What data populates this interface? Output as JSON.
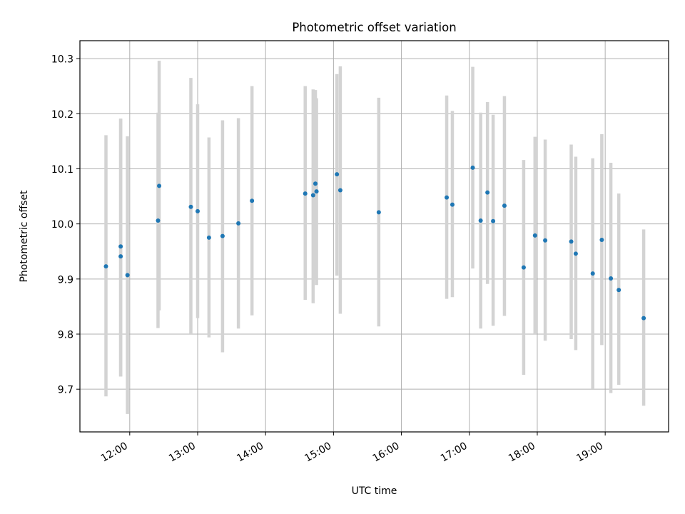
{
  "chart_data": {
    "type": "scatter",
    "title": "Photometric offset variation",
    "xlabel": "UTC time",
    "ylabel": "Photometric offset",
    "xlim": [
      "11:16",
      "19:56"
    ],
    "ylim": [
      9.6225,
      10.3325
    ],
    "grid": true,
    "xticks": [
      "12:00",
      "13:00",
      "14:00",
      "15:00",
      "16:00",
      "17:00",
      "18:00",
      "19:00"
    ],
    "yticks": [
      9.7,
      9.8,
      9.9,
      10.0,
      10.1,
      10.2,
      10.3
    ],
    "colors": {
      "point": "#1f77b4",
      "errorbar": "#d3d3d3",
      "grid": "#b0b0b0"
    },
    "series": [
      {
        "points": [
          {
            "x": "11:39",
            "y": 9.923,
            "yerr_low": 9.687,
            "yerr_high": 10.161
          },
          {
            "x": "11:52",
            "y": 9.959,
            "yerr_low": 9.723,
            "yerr_high": 10.191
          },
          {
            "x": "11:52",
            "y": 9.941,
            "yerr_low": 9.723,
            "yerr_high": 10.191
          },
          {
            "x": "11:58",
            "y": 9.907,
            "yerr_low": 9.655,
            "yerr_high": 10.159
          },
          {
            "x": "12:25",
            "y": 10.006,
            "yerr_low": 9.811,
            "yerr_high": 10.202
          },
          {
            "x": "12:26",
            "y": 10.069,
            "yerr_low": 9.843,
            "yerr_high": 10.296
          },
          {
            "x": "12:54",
            "y": 10.031,
            "yerr_low": 9.8,
            "yerr_high": 10.265
          },
          {
            "x": "13:00",
            "y": 10.023,
            "yerr_low": 9.829,
            "yerr_high": 10.217
          },
          {
            "x": "13:10",
            "y": 9.975,
            "yerr_low": 9.794,
            "yerr_high": 10.157
          },
          {
            "x": "13:22",
            "y": 9.978,
            "yerr_low": 9.767,
            "yerr_high": 10.188
          },
          {
            "x": "13:36",
            "y": 10.001,
            "yerr_low": 9.81,
            "yerr_high": 10.192
          },
          {
            "x": "13:48",
            "y": 10.042,
            "yerr_low": 9.834,
            "yerr_high": 10.25
          },
          {
            "x": "14:35",
            "y": 10.055,
            "yerr_low": 9.862,
            "yerr_high": 10.25
          },
          {
            "x": "14:42",
            "y": 10.052,
            "yerr_low": 9.856,
            "yerr_high": 10.244
          },
          {
            "x": "14:44",
            "y": 10.073,
            "yerr_low": 9.9,
            "yerr_high": 10.243
          },
          {
            "x": "14:45",
            "y": 10.059,
            "yerr_low": 9.889,
            "yerr_high": 10.228
          },
          {
            "x": "15:03",
            "y": 10.09,
            "yerr_low": 9.906,
            "yerr_high": 10.272
          },
          {
            "x": "15:06",
            "y": 10.061,
            "yerr_low": 9.837,
            "yerr_high": 10.286
          },
          {
            "x": "15:40",
            "y": 10.021,
            "yerr_low": 9.814,
            "yerr_high": 10.229
          },
          {
            "x": "16:40",
            "y": 10.048,
            "yerr_low": 9.864,
            "yerr_high": 10.233
          },
          {
            "x": "16:45",
            "y": 10.035,
            "yerr_low": 9.867,
            "yerr_high": 10.205
          },
          {
            "x": "17:03",
            "y": 10.102,
            "yerr_low": 9.919,
            "yerr_high": 10.285
          },
          {
            "x": "17:10",
            "y": 10.006,
            "yerr_low": 9.81,
            "yerr_high": 10.202
          },
          {
            "x": "17:16",
            "y": 10.057,
            "yerr_low": 9.891,
            "yerr_high": 10.221
          },
          {
            "x": "17:21",
            "y": 10.005,
            "yerr_low": 9.815,
            "yerr_high": 10.198
          },
          {
            "x": "17:31",
            "y": 10.033,
            "yerr_low": 9.833,
            "yerr_high": 10.232
          },
          {
            "x": "17:48",
            "y": 9.921,
            "yerr_low": 9.726,
            "yerr_high": 10.116
          },
          {
            "x": "17:58",
            "y": 9.979,
            "yerr_low": 9.8,
            "yerr_high": 10.158
          },
          {
            "x": "18:07",
            "y": 9.97,
            "yerr_low": 9.788,
            "yerr_high": 10.153
          },
          {
            "x": "18:30",
            "y": 9.968,
            "yerr_low": 9.791,
            "yerr_high": 10.144
          },
          {
            "x": "18:34",
            "y": 9.946,
            "yerr_low": 9.771,
            "yerr_high": 10.122
          },
          {
            "x": "18:49",
            "y": 9.91,
            "yerr_low": 9.701,
            "yerr_high": 10.119
          },
          {
            "x": "18:57",
            "y": 9.971,
            "yerr_low": 9.78,
            "yerr_high": 10.163
          },
          {
            "x": "19:05",
            "y": 9.901,
            "yerr_low": 9.693,
            "yerr_high": 10.111
          },
          {
            "x": "19:12",
            "y": 9.88,
            "yerr_low": 9.708,
            "yerr_high": 10.055
          },
          {
            "x": "19:34",
            "y": 9.829,
            "yerr_low": 9.67,
            "yerr_high": 9.99
          }
        ]
      }
    ]
  }
}
